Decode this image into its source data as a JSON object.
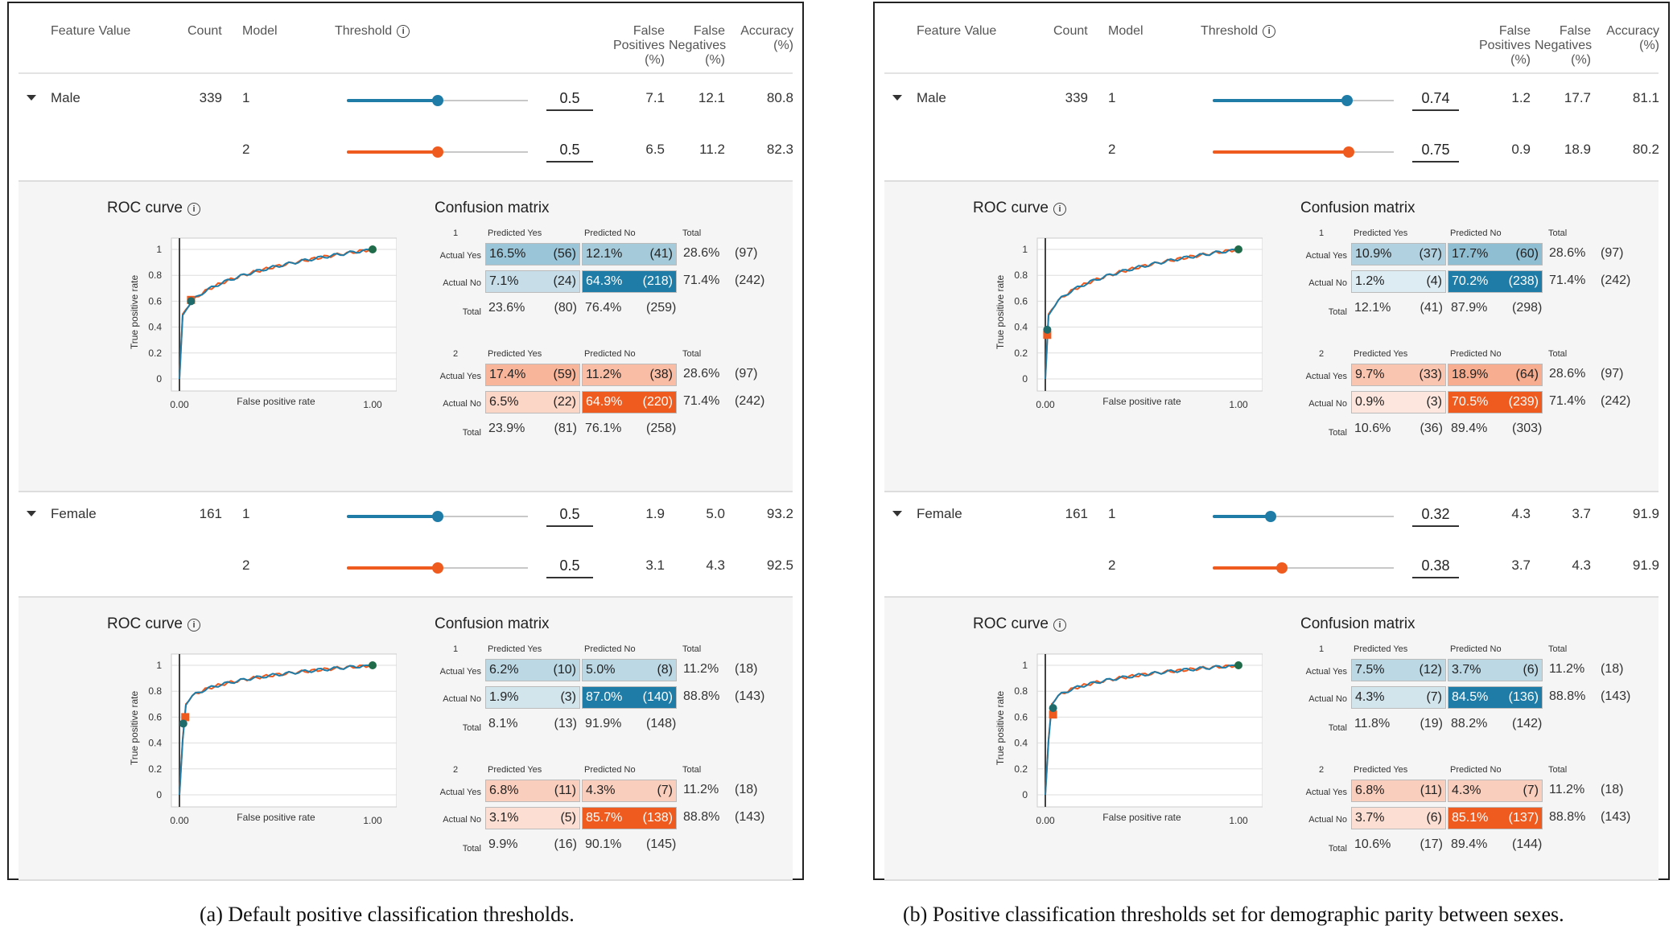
{
  "columns": {
    "feature_value": "Feature Value",
    "count": "Count",
    "model": "Model",
    "threshold": "Threshold",
    "fp": [
      "False",
      "Positives",
      "(%)"
    ],
    "fn": [
      "False",
      "Negatives",
      "(%)"
    ],
    "acc": [
      "Accuracy",
      "(%)"
    ]
  },
  "colors": {
    "model1": "#1f7ca6",
    "model2": "#ef5a1f"
  },
  "panels": [
    {
      "caption": "(a) Default positive classification thresholds.",
      "groups": [
        {
          "feature": "Male",
          "count": "339",
          "rows": [
            {
              "model": "1",
              "threshold": "0.5",
              "fraction": 0.5,
              "fp": "7.1",
              "fn": "12.1",
              "acc": "80.8"
            },
            {
              "model": "2",
              "threshold": "0.5",
              "fraction": 0.5,
              "fp": "6.5",
              "fn": "11.2",
              "acc": "82.3"
            }
          ],
          "roc_title": "ROC curve",
          "ylabel": "True positive rate",
          "xlabel": "False positive rate",
          "yticks": [
            "1",
            "0.8",
            "0.6",
            "0.4",
            "0.2",
            "0"
          ],
          "xticks": [
            "0.00",
            "1.00"
          ],
          "points": {
            "m1": [
              0.06,
              0.6
            ],
            "m2": [
              0.06,
              0.61
            ]
          },
          "cm_title": "Confusion matrix",
          "cms": [
            {
              "model": "1",
              "pred_yes": "Predicted Yes",
              "pred_no": "Predicted No",
              "total": "Total",
              "ay": "Actual Yes",
              "an": "Actual No",
              "tl": "Total",
              "c": [
                [
                  "16.5%",
                  "(56)",
                  "12.1%",
                  "(41)",
                  "28.6%",
                  "(97)"
                ],
                [
                  "7.1%",
                  "(24)",
                  "64.3%",
                  "(218)",
                  "71.4%",
                  "(242)"
                ],
                [
                  "23.6%",
                  "(80)",
                  "76.4%",
                  "(259)"
                ]
              ],
              "shade": [
                0.45,
                0.4,
                0.25,
                1.0
              ]
            },
            {
              "model": "2",
              "pred_yes": "Predicted Yes",
              "pred_no": "Predicted No",
              "total": "Total",
              "ay": "Actual Yes",
              "an": "Actual No",
              "tl": "Total",
              "c": [
                [
                  "17.4%",
                  "(59)",
                  "11.2%",
                  "(38)",
                  "28.6%",
                  "(97)"
                ],
                [
                  "6.5%",
                  "(22)",
                  "64.9%",
                  "(220)",
                  "71.4%",
                  "(242)"
                ],
                [
                  "23.9%",
                  "(81)",
                  "76.1%",
                  "(258)"
                ]
              ],
              "shade": [
                0.45,
                0.4,
                0.25,
                1.0
              ]
            }
          ]
        },
        {
          "feature": "Female",
          "count": "161",
          "rows": [
            {
              "model": "1",
              "threshold": "0.5",
              "fraction": 0.5,
              "fp": "1.9",
              "fn": "5.0",
              "acc": "93.2"
            },
            {
              "model": "2",
              "threshold": "0.5",
              "fraction": 0.5,
              "fp": "3.1",
              "fn": "4.3",
              "acc": "92.5"
            }
          ],
          "roc_title": "ROC curve",
          "ylabel": "True positive rate",
          "xlabel": "False positive rate",
          "yticks": [
            "1",
            "0.8",
            "0.6",
            "0.4",
            "0.2",
            "0"
          ],
          "xticks": [
            "0.00",
            "1.00"
          ],
          "points": {
            "m1": [
              0.02,
              0.55
            ],
            "m2": [
              0.03,
              0.6
            ]
          },
          "cm_title": "Confusion matrix",
          "cms": [
            {
              "model": "1",
              "pred_yes": "Predicted Yes",
              "pred_no": "Predicted No",
              "total": "Total",
              "ay": "Actual Yes",
              "an": "Actual No",
              "tl": "Total",
              "c": [
                [
                  "6.2%",
                  "(10)",
                  "5.0%",
                  "(8)",
                  "11.2%",
                  "(18)"
                ],
                [
                  "1.9%",
                  "(3)",
                  "87.0%",
                  "(140)",
                  "88.8%",
                  "(143)"
                ],
                [
                  "8.1%",
                  "(13)",
                  "91.9%",
                  "(148)"
                ]
              ],
              "shade": [
                0.3,
                0.3,
                0.2,
                1.0
              ]
            },
            {
              "model": "2",
              "pred_yes": "Predicted Yes",
              "pred_no": "Predicted No",
              "total": "Total",
              "ay": "Actual Yes",
              "an": "Actual No",
              "tl": "Total",
              "c": [
                [
                  "6.8%",
                  "(11)",
                  "4.3%",
                  "(7)",
                  "11.2%",
                  "(18)"
                ],
                [
                  "3.1%",
                  "(5)",
                  "85.7%",
                  "(138)",
                  "88.8%",
                  "(143)"
                ],
                [
                  "9.9%",
                  "(16)",
                  "90.1%",
                  "(145)"
                ]
              ],
              "shade": [
                0.3,
                0.3,
                0.2,
                1.0
              ]
            }
          ]
        }
      ]
    },
    {
      "caption": "(b) Positive classification thresholds set for demographic parity between sexes.",
      "groups": [
        {
          "feature": "Male",
          "count": "339",
          "rows": [
            {
              "model": "1",
              "threshold": "0.74",
              "fraction": 0.74,
              "fp": "1.2",
              "fn": "17.7",
              "acc": "81.1"
            },
            {
              "model": "2",
              "threshold": "0.75",
              "fraction": 0.75,
              "fp": "0.9",
              "fn": "18.9",
              "acc": "80.2"
            }
          ],
          "roc_title": "ROC curve",
          "ylabel": "True positive rate",
          "xlabel": "False positive rate",
          "yticks": [
            "1",
            "0.8",
            "0.6",
            "0.4",
            "0.2",
            "0"
          ],
          "xticks": [
            "0.00",
            "1.00"
          ],
          "points": {
            "m1": [
              0.01,
              0.38
            ],
            "m2": [
              0.01,
              0.34
            ]
          },
          "cm_title": "Confusion matrix",
          "cms": [
            {
              "model": "1",
              "pred_yes": "Predicted Yes",
              "pred_no": "Predicted No",
              "total": "Total",
              "ay": "Actual Yes",
              "an": "Actual No",
              "tl": "Total",
              "c": [
                [
                  "10.9%",
                  "(37)",
                  "17.7%",
                  "(60)",
                  "28.6%",
                  "(97)"
                ],
                [
                  "1.2%",
                  "(4)",
                  "70.2%",
                  "(238)",
                  "71.4%",
                  "(242)"
                ],
                [
                  "12.1%",
                  "(41)",
                  "87.9%",
                  "(298)"
                ]
              ],
              "shade": [
                0.35,
                0.5,
                0.15,
                1.0
              ]
            },
            {
              "model": "2",
              "pred_yes": "Predicted Yes",
              "pred_no": "Predicted No",
              "total": "Total",
              "ay": "Actual Yes",
              "an": "Actual No",
              "tl": "Total",
              "c": [
                [
                  "9.7%",
                  "(33)",
                  "18.9%",
                  "(64)",
                  "28.6%",
                  "(97)"
                ],
                [
                  "0.9%",
                  "(3)",
                  "70.5%",
                  "(239)",
                  "71.4%",
                  "(242)"
                ],
                [
                  "10.6%",
                  "(36)",
                  "89.4%",
                  "(303)"
                ]
              ],
              "shade": [
                0.35,
                0.5,
                0.15,
                1.0
              ]
            }
          ]
        },
        {
          "feature": "Female",
          "count": "161",
          "rows": [
            {
              "model": "1",
              "threshold": "0.32",
              "fraction": 0.32,
              "fp": "4.3",
              "fn": "3.7",
              "acc": "91.9"
            },
            {
              "model": "2",
              "threshold": "0.38",
              "fraction": 0.38,
              "fp": "3.7",
              "fn": "4.3",
              "acc": "91.9"
            }
          ],
          "roc_title": "ROC curve",
          "ylabel": "True positive rate",
          "xlabel": "False positive rate",
          "yticks": [
            "1",
            "0.8",
            "0.6",
            "0.4",
            "0.2",
            "0"
          ],
          "xticks": [
            "0.00",
            "1.00"
          ],
          "points": {
            "m1": [
              0.04,
              0.67
            ],
            "m2": [
              0.04,
              0.62
            ]
          },
          "cm_title": "Confusion matrix",
          "cms": [
            {
              "model": "1",
              "pred_yes": "Predicted Yes",
              "pred_no": "Predicted No",
              "total": "Total",
              "ay": "Actual Yes",
              "an": "Actual No",
              "tl": "Total",
              "c": [
                [
                  "7.5%",
                  "(12)",
                  "3.7%",
                  "(6)",
                  "11.2%",
                  "(18)"
                ],
                [
                  "4.3%",
                  "(7)",
                  "84.5%",
                  "(136)",
                  "88.8%",
                  "(143)"
                ],
                [
                  "11.8%",
                  "(19)",
                  "88.2%",
                  "(142)"
                ]
              ],
              "shade": [
                0.3,
                0.3,
                0.2,
                1.0
              ]
            },
            {
              "model": "2",
              "pred_yes": "Predicted Yes",
              "pred_no": "Predicted No",
              "total": "Total",
              "ay": "Actual Yes",
              "an": "Actual No",
              "tl": "Total",
              "c": [
                [
                  "6.8%",
                  "(11)",
                  "4.3%",
                  "(7)",
                  "11.2%",
                  "(18)"
                ],
                [
                  "3.7%",
                  "(6)",
                  "85.1%",
                  "(137)",
                  "88.8%",
                  "(143)"
                ],
                [
                  "10.6%",
                  "(17)",
                  "89.4%",
                  "(144)"
                ]
              ],
              "shade": [
                0.3,
                0.3,
                0.2,
                1.0
              ]
            }
          ]
        }
      ]
    }
  ]
}
